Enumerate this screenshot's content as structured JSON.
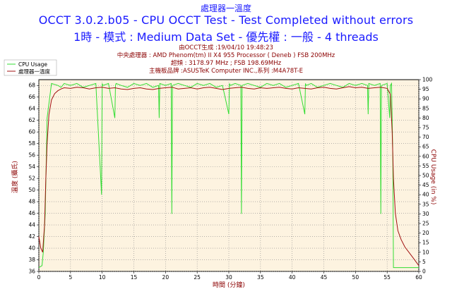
{
  "header": {
    "line1": "處理器一溫度",
    "line2": "OCCT 3.0.2.b05 - CPU OCCT Test - Test Completed without errors",
    "line3": "1時 - 模式 : Medium Data Set - 優先權 : 一般 - 4 threads"
  },
  "info": {
    "line1": "由OCCT生成 :19/04/10 19:48:23",
    "line2": "中央處理器 : AMD Phenom(tm) II X4 955 Processor ( Deneb ) FSB 200MHz",
    "line3": "超頻 : 3178.97 MHz ; FSB 198.69MHz",
    "line4": "主機板品牌 :ASUSTeK Computer INC.,系列 :M4A78T-E"
  },
  "chart_data": {
    "type": "line",
    "xlabel": "時間 (分鐘)",
    "ylabel_left": "溫度 (攝氏)",
    "ylabel_right": "CPU Usage (in %)",
    "xlim": [
      0,
      60
    ],
    "ylim_left": [
      36,
      69
    ],
    "ylim_right": [
      0,
      100
    ],
    "xticks": [
      0,
      5,
      10,
      15,
      20,
      25,
      30,
      35,
      40,
      45,
      50,
      55,
      60
    ],
    "yticks_left": [
      36,
      38,
      40,
      42,
      44,
      46,
      48,
      50,
      52,
      54,
      56,
      58,
      60,
      62,
      64,
      66,
      68
    ],
    "yticks_right": [
      0,
      5,
      10,
      15,
      20,
      25,
      30,
      35,
      40,
      45,
      50,
      55,
      60,
      65,
      70,
      75,
      80,
      85,
      90,
      95,
      100
    ],
    "grid": true,
    "legend_position": "top-left",
    "series": [
      {
        "name": "CPU Usage",
        "axis": "right",
        "color": "#33dd33",
        "x": [
          0,
          0.5,
          0.7,
          1.0,
          1.3,
          2,
          3,
          3.5,
          4,
          5,
          6,
          7,
          8,
          9,
          9.9,
          10.0,
          10.1,
          11,
          12.0,
          12.1,
          12.2,
          13,
          14,
          15,
          16,
          17,
          18,
          18.9,
          19.0,
          19.1,
          20,
          20.9,
          21.0,
          21.1,
          22,
          23,
          24,
          25,
          26,
          27,
          28,
          29,
          30.0,
          30.1,
          30.2,
          31,
          31.9,
          32.0,
          32.1,
          33,
          34,
          35,
          36,
          37,
          38,
          39,
          40,
          41,
          42.0,
          42.1,
          42.2,
          43,
          44,
          45,
          46,
          47,
          48,
          49,
          50,
          51,
          51.9,
          52.0,
          52.1,
          53,
          53.9,
          54.0,
          54.1,
          55,
          55.4,
          55.5,
          55.7,
          55.9,
          56.0,
          56.5,
          57,
          58,
          59,
          60
        ],
        "values": [
          2,
          3,
          10,
          30,
          80,
          98,
          97,
          96,
          98,
          97,
          98,
          96,
          97,
          98,
          40,
          98,
          97,
          98,
          80,
          97,
          98,
          97,
          96,
          98,
          97,
          98,
          96,
          97,
          80,
          98,
          97,
          98,
          30,
          97,
          98,
          97,
          96,
          98,
          97,
          98,
          96,
          97,
          82,
          98,
          97,
          98,
          97,
          30,
          97,
          98,
          97,
          96,
          98,
          97,
          98,
          96,
          97,
          98,
          82,
          98,
          97,
          98,
          96,
          97,
          98,
          97,
          96,
          98,
          97,
          98,
          97,
          82,
          98,
          97,
          98,
          30,
          97,
          98,
          80,
          97,
          98,
          60,
          2,
          2,
          2,
          2,
          2,
          2
        ]
      },
      {
        "name": "處理器一溫度",
        "axis": "left",
        "color": "#a01010",
        "x": [
          0,
          0.3,
          0.6,
          0.9,
          1.1,
          1.3,
          1.6,
          2.0,
          2.5,
          3.0,
          3.5,
          4.0,
          5,
          6,
          7,
          8,
          9,
          10,
          11,
          12,
          13,
          14,
          15,
          16,
          17,
          18,
          19,
          20,
          21,
          22,
          23,
          24,
          25,
          26,
          27,
          28,
          29,
          30,
          31,
          32,
          33,
          34,
          35,
          36,
          37,
          38,
          39,
          40,
          41,
          42,
          43,
          44,
          45,
          46,
          47,
          48,
          49,
          50,
          51,
          52,
          53,
          54,
          55,
          55.5,
          55.8,
          56.0,
          56.3,
          56.7,
          57.2,
          57.8,
          58.5,
          59.2,
          60
        ],
        "values": [
          42,
          40,
          39.3,
          44,
          52,
          58,
          63,
          65.5,
          66.6,
          67.1,
          67.4,
          67.6,
          67.5,
          67.7,
          67.6,
          67.4,
          67.6,
          67.7,
          67.5,
          67.6,
          67.4,
          67.3,
          67.5,
          67.6,
          67.4,
          67.3,
          67.5,
          67.6,
          67.7,
          67.4,
          67.5,
          67.6,
          67.4,
          67.6,
          67.7,
          67.5,
          67.3,
          67.5,
          67.6,
          67.7,
          67.5,
          67.4,
          67.6,
          67.5,
          67.6,
          67.7,
          67.5,
          67.4,
          67.6,
          67.5,
          67.4,
          67.6,
          67.7,
          67.5,
          67.4,
          67.6,
          67.8,
          67.6,
          67.7,
          67.5,
          67.6,
          67.7,
          67.5,
          66.5,
          60,
          52,
          46,
          43,
          41.5,
          40.2,
          39.2,
          38.2,
          37
        ]
      }
    ]
  }
}
